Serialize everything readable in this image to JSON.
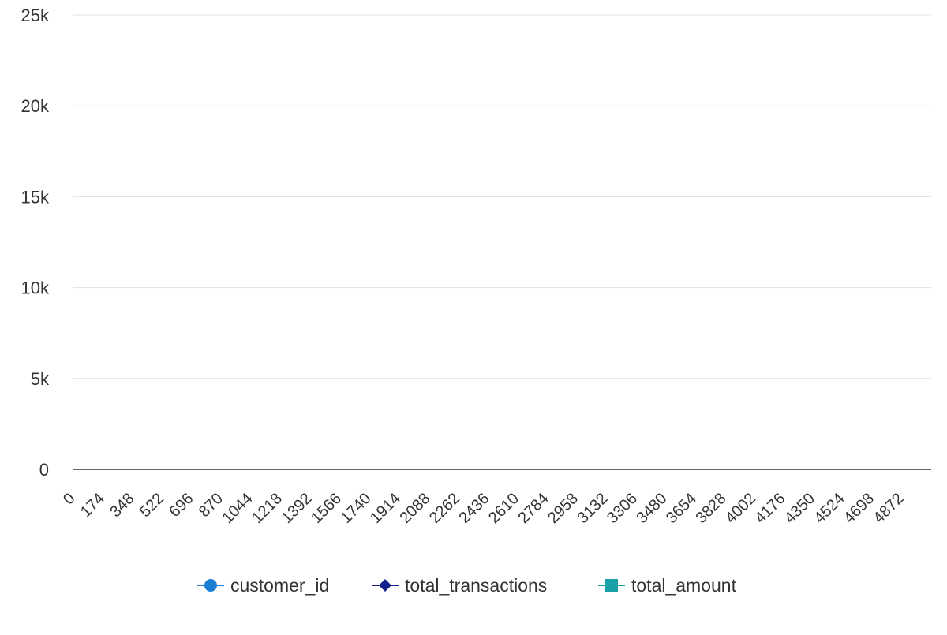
{
  "chart_data": {
    "type": "line",
    "title": "",
    "xlabel": "",
    "ylabel": "",
    "x_ticks": [
      "0",
      "174",
      "348",
      "522",
      "696",
      "870",
      "1044",
      "1218",
      "1392",
      "1566",
      "1740",
      "1914",
      "2088",
      "2262",
      "2436",
      "2610",
      "2784",
      "2958",
      "3132",
      "3306",
      "3480",
      "3654",
      "3828",
      "4002",
      "4176",
      "4350",
      "4524",
      "4698",
      "4872"
    ],
    "xlim": [
      0,
      5000
    ],
    "ylim": [
      0,
      25000
    ],
    "y_ticks": [
      {
        "value": 0,
        "label": "0"
      },
      {
        "value": 5000,
        "label": "5k"
      },
      {
        "value": 10000,
        "label": "10k"
      },
      {
        "value": 15000,
        "label": "15k"
      },
      {
        "value": 20000,
        "label": "20k"
      },
      {
        "value": 25000,
        "label": "25k"
      }
    ],
    "grid": true,
    "legend_position": "bottom",
    "series": [
      {
        "name": "customer_id",
        "color": "#1a7fd4",
        "marker": "circle",
        "values": []
      },
      {
        "name": "total_transactions",
        "color": "#15208f",
        "marker": "diamond",
        "values": []
      },
      {
        "name": "total_amount",
        "color": "#1aa1a8",
        "marker": "square",
        "values": []
      }
    ]
  }
}
